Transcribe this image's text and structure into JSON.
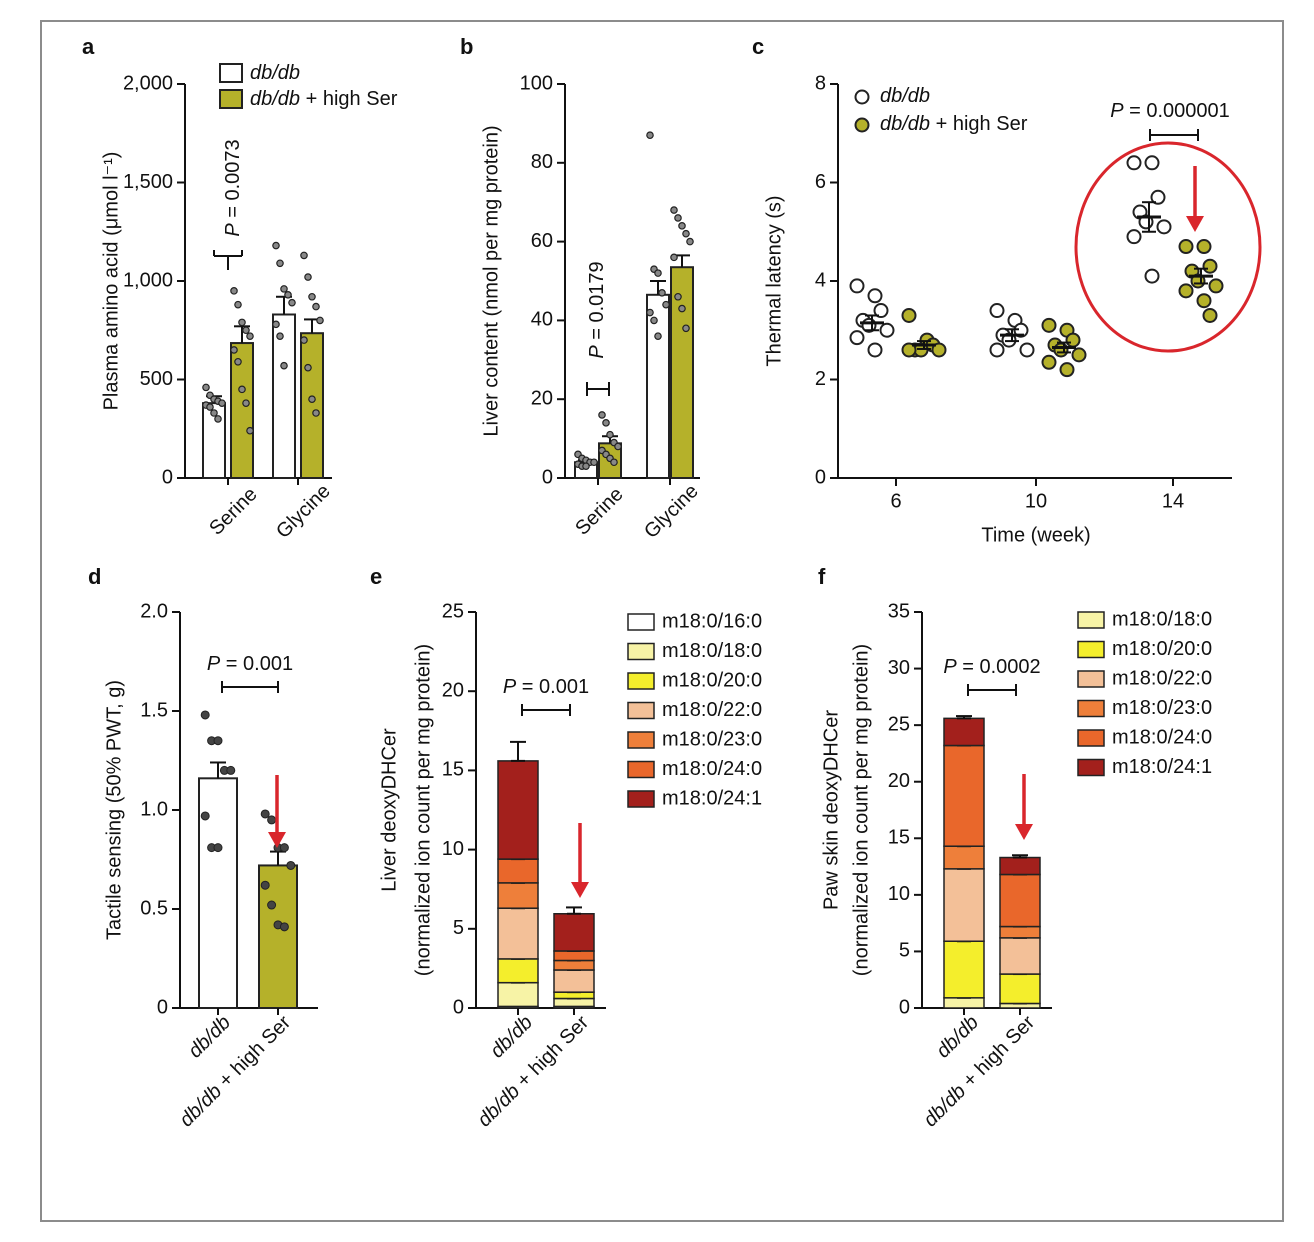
{
  "colors": {
    "db": "#ffffff",
    "ser": "#b5b12a",
    "red": "#d9262c",
    "axis": "#111111",
    "species": {
      "m18:0/16:0": "#ffffff",
      "m18:0/18:0": "#f7f3a6",
      "m18:0/20:0": "#f4ee2c",
      "m18:0/22:0": "#f3c098",
      "m18:0/23:0": "#ee7f3a",
      "m18:0/24:0": "#e9672b",
      "m18:0/24:1": "#a3201c"
    }
  },
  "chart_data": [
    {
      "panel": "a",
      "type": "bar",
      "ylabel": "Plasma amino acid (μmol l⁻¹)",
      "ylim": [
        0,
        2000
      ],
      "yticks": [
        0,
        500,
        1000,
        1500,
        2000
      ],
      "ytick_labels": [
        "0",
        "500",
        "1,000",
        "1,500",
        "2,000"
      ],
      "categories": [
        "Serine",
        "Glycine"
      ],
      "series": [
        {
          "name": "db/db",
          "values": [
            380,
            830
          ],
          "sem": [
            35,
            90
          ]
        },
        {
          "name": "db/db + high Ser",
          "values": [
            685,
            735
          ],
          "sem": [
            85,
            70
          ]
        }
      ],
      "points": [
        [
          [
            460,
            420,
            400,
            390,
            380,
            370,
            360,
            330,
            300
          ],
          [
            1180,
            1090,
            960,
            930,
            890,
            780,
            720,
            570
          ]
        ],
        [
          [
            950,
            880,
            790,
            750,
            720,
            650,
            590,
            450,
            380,
            240
          ],
          [
            1130,
            1020,
            920,
            870,
            800,
            700,
            560,
            400,
            330
          ]
        ]
      ],
      "legend": [
        "db/db",
        "db/db + high Ser"
      ],
      "annotation": "P = 0.0073"
    },
    {
      "panel": "b",
      "type": "bar",
      "ylabel": "Liver content (nmol per mg protein)",
      "ylim": [
        0,
        100
      ],
      "yticks": [
        0,
        20,
        40,
        60,
        80,
        100
      ],
      "ytick_labels": [
        "0",
        "20",
        "40",
        "60",
        "80",
        "100"
      ],
      "categories": [
        "Serine",
        "Glycine"
      ],
      "series": [
        {
          "name": "db/db",
          "values": [
            4,
            46.5
          ],
          "sem": [
            0.5,
            3.5
          ]
        },
        {
          "name": "db/db + high Ser",
          "values": [
            8.8,
            53.5
          ],
          "sem": [
            1.8,
            3
          ]
        }
      ],
      "points": [
        [
          [
            6,
            5,
            4.5,
            4,
            4,
            3.5,
            3,
            3
          ],
          [
            87,
            53,
            52,
            47,
            44,
            42,
            40,
            36
          ]
        ],
        [
          [
            16,
            14,
            11,
            9,
            8,
            7,
            6,
            5,
            4
          ],
          [
            68,
            66,
            64,
            62,
            60,
            56,
            46,
            43,
            38
          ]
        ]
      ],
      "annotation": "P = 0.0179"
    },
    {
      "panel": "c",
      "type": "scatter",
      "ylabel": "Thermal latency (s)",
      "xlabel": "Time (week)",
      "ylim": [
        0,
        8
      ],
      "yticks": [
        0,
        2,
        4,
        6,
        8
      ],
      "ytick_labels": [
        "0",
        "2",
        "4",
        "6",
        "8"
      ],
      "x": [
        6,
        10,
        14
      ],
      "xtick_labels": [
        "6",
        "10",
        "14"
      ],
      "series": [
        {
          "name": "db/db",
          "means": [
            3.15,
            2.9,
            5.3
          ],
          "sem": [
            0.15,
            0.12,
            0.3
          ],
          "points": [
            [
              3.9,
              3.7,
              3.4,
              3.2,
              3.1,
              3.0,
              2.85,
              2.6
            ],
            [
              3.4,
              3.2,
              3.0,
              2.9,
              2.8,
              2.6,
              2.6
            ],
            [
              6.4,
              6.4,
              5.7,
              5.4,
              5.2,
              5.1,
              4.9,
              4.1
            ]
          ]
        },
        {
          "name": "db/db + high Ser",
          "means": [
            2.7,
            2.65,
            4.1
          ],
          "sem": [
            0.08,
            0.1,
            0.15
          ],
          "points": [
            [
              3.3,
              2.8,
              2.7,
              2.6,
              2.6,
              2.6,
              2.6
            ],
            [
              3.1,
              3.0,
              2.8,
              2.7,
              2.6,
              2.5,
              2.35,
              2.2
            ],
            [
              4.7,
              4.7,
              4.3,
              4.2,
              4.0,
              3.9,
              3.8,
              3.6,
              3.3
            ]
          ]
        }
      ],
      "legend": [
        "db/db",
        "db/db + high Ser"
      ],
      "annotation": "P = 0.000001"
    },
    {
      "panel": "d",
      "type": "bar",
      "ylabel": "Tactile sensing (50% PWT, g)",
      "ylim": [
        0,
        2
      ],
      "yticks": [
        0,
        0.5,
        1,
        1.5,
        2
      ],
      "ytick_labels": [
        "0",
        "0.5",
        "1.0",
        "1.5",
        "2.0"
      ],
      "categories": [
        "db/db",
        "db/db + high Ser"
      ],
      "values": [
        1.16,
        0.72
      ],
      "sem": [
        0.08,
        0.07
      ],
      "points": [
        [
          1.48,
          1.35,
          1.35,
          1.2,
          1.2,
          0.97,
          0.81,
          0.81
        ],
        [
          0.98,
          0.95,
          0.81,
          0.81,
          0.72,
          0.62,
          0.52,
          0.42,
          0.41
        ]
      ],
      "annotation": "P = 0.001"
    },
    {
      "panel": "e",
      "type": "bar",
      "ylabel": "Liver deoxyDHCer",
      "ylabel2": "(normalized ion count per mg protein)",
      "ylim": [
        0,
        25
      ],
      "yticks": [
        0,
        5,
        10,
        15,
        20,
        25
      ],
      "ytick_labels": [
        "0",
        "5",
        "10",
        "15",
        "20",
        "25"
      ],
      "categories": [
        "db/db",
        "db/db + high Ser"
      ],
      "series": [
        {
          "name": "m18:0/16:0",
          "values": [
            0.1,
            0.1
          ]
        },
        {
          "name": "m18:0/18:0",
          "values": [
            1.5,
            0.5
          ]
        },
        {
          "name": "m18:0/20:0",
          "values": [
            1.5,
            0.4
          ]
        },
        {
          "name": "m18:0/22:0",
          "values": [
            3.2,
            1.4
          ]
        },
        {
          "name": "m18:0/23:0",
          "values": [
            1.6,
            0.6
          ]
        },
        {
          "name": "m18:0/24:0",
          "values": [
            1.5,
            0.6
          ]
        },
        {
          "name": "m18:0/24:1",
          "values": [
            6.2,
            2.35
          ]
        }
      ],
      "legend": [
        "m18:0/16:0",
        "m18:0/18:0",
        "m18:0/20:0",
        "m18:0/22:0",
        "m18:0/23:0",
        "m18:0/24:0",
        "m18:0/24:1"
      ],
      "annotation": "P = 0.001"
    },
    {
      "panel": "f",
      "type": "bar",
      "ylabel": "Paw skin deoxyDHCer",
      "ylabel2": "(normalized ion count per mg protein)",
      "ylim": [
        0,
        35
      ],
      "yticks": [
        0,
        5,
        10,
        15,
        20,
        25,
        30,
        35
      ],
      "ytick_labels": [
        "0",
        "5",
        "10",
        "15",
        "20",
        "25",
        "30",
        "35"
      ],
      "categories": [
        "db/db",
        "db/db + high Ser"
      ],
      "series": [
        {
          "name": "m18:0/18:0",
          "values": [
            0.9,
            0.4
          ]
        },
        {
          "name": "m18:0/20:0",
          "values": [
            5.0,
            2.6
          ]
        },
        {
          "name": "m18:0/22:0",
          "values": [
            6.4,
            3.2
          ]
        },
        {
          "name": "m18:0/23:0",
          "values": [
            2.0,
            1.0
          ]
        },
        {
          "name": "m18:0/24:0",
          "values": [
            8.9,
            4.6
          ]
        },
        {
          "name": "m18:0/24:1",
          "values": [
            2.4,
            1.5
          ]
        }
      ],
      "legend": [
        "m18:0/18:0",
        "m18:0/20:0",
        "m18:0/22:0",
        "m18:0/23:0",
        "m18:0/24:0",
        "m18:0/24:1"
      ],
      "annotation": "P = 0.0002"
    }
  ]
}
